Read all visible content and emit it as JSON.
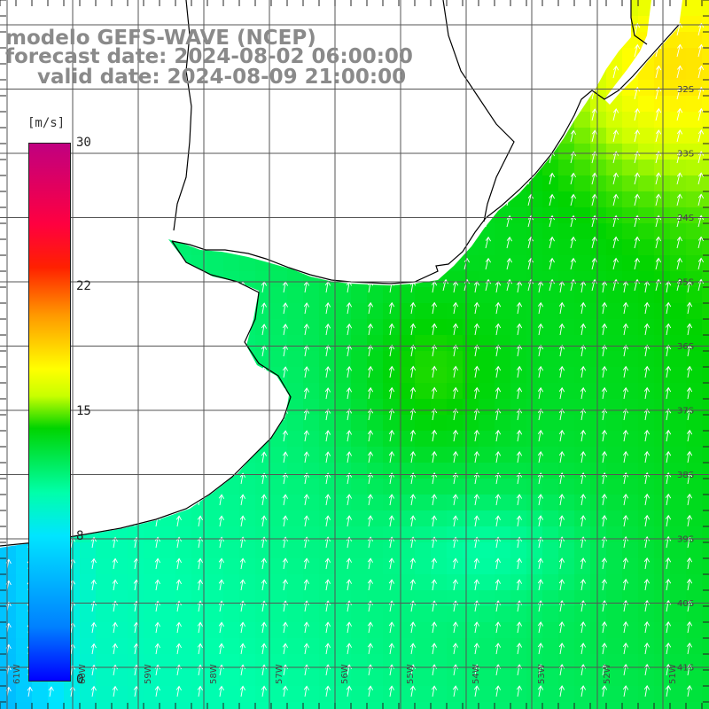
{
  "titles": {
    "line1": "modelo GEFS-WAVE (NCEP)",
    "line2": "forecast date: 2024-08-02 06:00:00",
    "line3": "valid date: 2024-08-09 21:00:00"
  },
  "colorbar": {
    "unit": "[m/s]",
    "ticks": [
      "30",
      "22",
      "15",
      "8",
      "0"
    ],
    "min": 0,
    "max": 30
  },
  "lat_labels": [
    "32S",
    "33S",
    "34S",
    "35S",
    "36S",
    "37S",
    "38S",
    "39S",
    "40S",
    "41S"
  ],
  "lon_labels": [
    "61W",
    "60W",
    "59W",
    "58W",
    "57W",
    "56W",
    "55W",
    "54W",
    "53W",
    "52W",
    "51W"
  ],
  "map": {
    "wind_direction": "from south-southwest",
    "land_color": "#ffffff",
    "coastline_color": "#000000",
    "grid_color": "#555555"
  }
}
